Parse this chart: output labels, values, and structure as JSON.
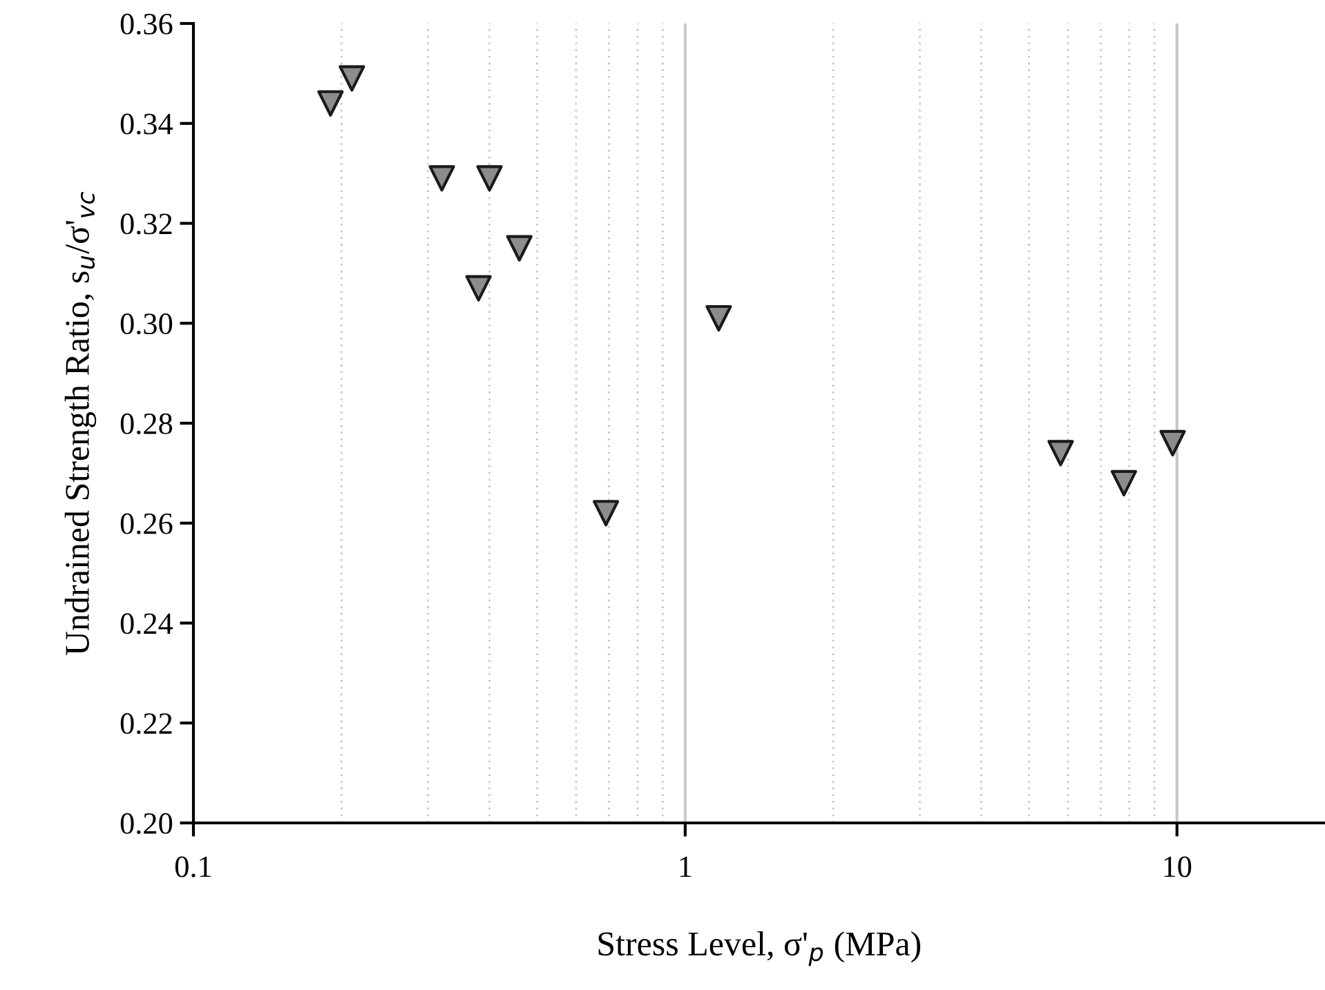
{
  "chart_data": {
    "type": "scatter",
    "xlabel": "Stress Level, σ'$_{p}$ (MPa)",
    "ylabel": "Undrained Strength Ratio, s$_{u}$/σ'$_{vc}$",
    "x": [
      0.19,
      0.21,
      0.32,
      0.4,
      0.38,
      0.46,
      0.69,
      1.17,
      5.8,
      7.8,
      9.8
    ],
    "series": [
      {
        "color": "#8c8c8c",
        "values": [
          0.344,
          0.349,
          0.329,
          0.329,
          0.307,
          0.315,
          0.262,
          0.301,
          0.274,
          0.268,
          0.276
        ]
      }
    ],
    "log": "x",
    "xlim": [
      0.1,
      20
    ],
    "xticks": [
      0.1,
      1,
      10
    ],
    "ylim": [
      0.2,
      0.36
    ],
    "yticks": [
      {
        "value": 0.2,
        "label": "0.20"
      },
      {
        "value": 0.22,
        "label": "0.22"
      },
      {
        "value": 0.24,
        "label": "0.24"
      },
      {
        "value": 0.26,
        "label": "0.26"
      },
      {
        "value": 0.28,
        "label": "0.28"
      },
      {
        "value": 0.3,
        "label": "0.30"
      },
      {
        "value": 0.32,
        "label": "0.32"
      },
      {
        "value": 0.34,
        "label": "0.34"
      },
      {
        "value": 0.36,
        "label": "0.36"
      }
    ],
    "grid": "x",
    "marker": "triangle_down",
    "legend": false
  }
}
